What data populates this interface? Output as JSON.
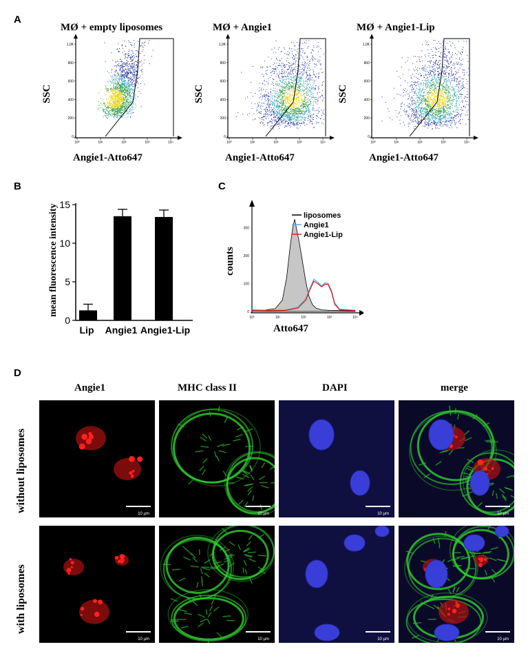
{
  "panels": {
    "A": "A",
    "B": "B",
    "C": "C",
    "D": "D"
  },
  "panelA": {
    "plots": [
      {
        "title": "MØ + empty liposomes",
        "ylabel": "SSC",
        "xlabel": "Angie1-Atto647"
      },
      {
        "title": "MØ + Angie1",
        "ylabel": "SSC",
        "xlabel": "Angie1-Atto647"
      },
      {
        "title": "MØ + Angie1-Lip",
        "ylabel": "SSC",
        "xlabel": "Angie1-Atto647"
      }
    ],
    "yticks": [
      "0",
      "200",
      "400",
      "600",
      "800",
      "1,0K"
    ],
    "xticks": [
      "10⁰",
      "10¹",
      "10²",
      "10³",
      "10⁴"
    ]
  },
  "chart_data": [
    {
      "type": "scatter",
      "panel": "A",
      "title": "MØ + empty liposomes / MØ + Angie1 / MØ + Angie1-Lip",
      "xlabel": "Angie1-Atto647",
      "ylabel": "SSC",
      "xscale": "log",
      "xlim": [
        1,
        10000
      ],
      "ylim": [
        0,
        1000
      ]
    },
    {
      "type": "bar",
      "panel": "B",
      "categories": [
        "Lip",
        "Angie1",
        "Angie1-Lip"
      ],
      "values": [
        1.3,
        13.5,
        13.4
      ],
      "errors": [
        0.8,
        0.9,
        0.9
      ],
      "ylabel": "mean fluorescence intensity",
      "ylim": [
        0,
        15
      ],
      "yticks": [
        "0",
        "5",
        "10",
        "15"
      ]
    },
    {
      "type": "line",
      "panel": "C",
      "xlabel": "Atto647",
      "ylabel": "counts",
      "xscale": "log",
      "xlim": [
        1,
        10000
      ],
      "ylim": [
        0,
        370
      ],
      "yticks": [
        "0",
        "100",
        "200",
        "300"
      ],
      "xticks": [
        "10⁰",
        "10¹",
        "10²",
        "10³",
        "10⁴"
      ],
      "series": [
        {
          "name": "liposomes",
          "color": "#000000",
          "x": [
            1,
            3,
            8,
            15,
            22,
            30,
            38,
            45,
            55,
            70,
            90,
            120,
            160,
            220,
            300,
            500,
            1000,
            10000
          ],
          "y": [
            5,
            5,
            10,
            40,
            120,
            230,
            300,
            330,
            290,
            240,
            180,
            110,
            55,
            25,
            12,
            6,
            4,
            2
          ]
        },
        {
          "name": "Angie1",
          "color": "#5aaee0",
          "x": [
            1,
            5,
            20,
            60,
            120,
            180,
            250,
            350,
            500,
            700,
            900,
            1200,
            1600,
            2500,
            10000
          ],
          "y": [
            6,
            4,
            5,
            15,
            45,
            85,
            115,
            105,
            92,
            103,
            100,
            75,
            30,
            8,
            4
          ]
        },
        {
          "name": "Angie1-Lip",
          "color": "#dd2222",
          "x": [
            1,
            5,
            20,
            60,
            120,
            180,
            250,
            350,
            500,
            700,
            900,
            1200,
            1600,
            2500,
            10000
          ],
          "y": [
            4,
            3,
            4,
            12,
            40,
            80,
            108,
            100,
            88,
            98,
            96,
            70,
            26,
            6,
            3
          ]
        }
      ]
    }
  ],
  "panelD": {
    "columns": [
      "Angie1",
      "MHC class II",
      "DAPI",
      "merge"
    ],
    "rows": [
      "without liposomes",
      "with liposomes"
    ],
    "scalebar": "10 µm"
  },
  "colors": {
    "red_channel": "#e01010",
    "green_channel": "#22c022",
    "blue_channel": "#2a30d0",
    "background": "#000000"
  }
}
